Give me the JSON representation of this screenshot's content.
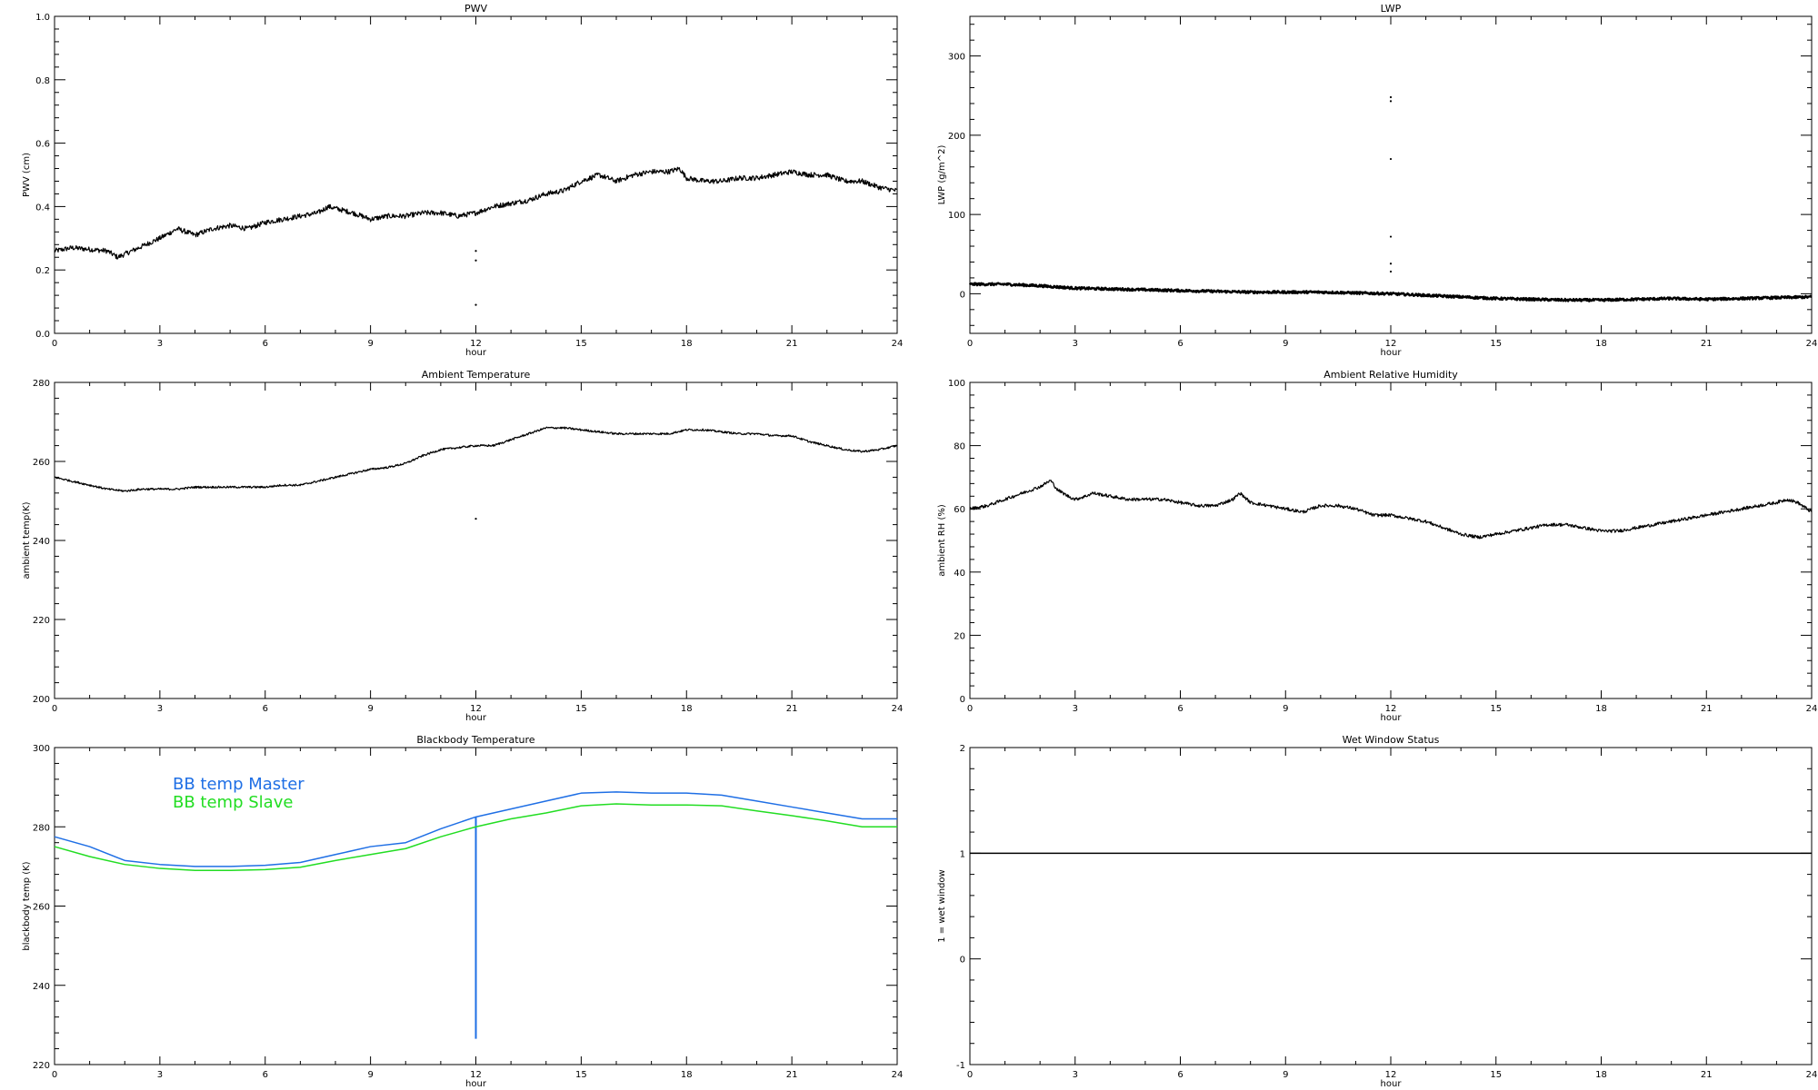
{
  "chart_data": [
    {
      "type": "line",
      "title": "PWV",
      "xlabel": "hour",
      "ylabel": "PWV (cm)",
      "xlim": [
        0,
        24
      ],
      "ylim": [
        0.0,
        1.0
      ],
      "xticks": [
        "0",
        "3",
        "6",
        "9",
        "12",
        "15",
        "18",
        "21",
        "24"
      ],
      "yticks": [
        "0.0",
        "0.2",
        "0.4",
        "0.6",
        "0.8",
        "1.0"
      ],
      "yticks_values": [
        0.0,
        0.2,
        0.4,
        0.6,
        0.8,
        1.0
      ],
      "series": [
        {
          "color": "#000000",
          "noise": 0.008,
          "x": [
            0,
            0.5,
            1,
            1.5,
            1.8,
            2.2,
            2.6,
            3,
            3.5,
            4,
            4.5,
            5,
            5.5,
            6,
            6.5,
            7,
            7.5,
            7.8,
            8.5,
            9,
            9.5,
            10,
            10.5,
            11,
            11.5,
            12,
            12.5,
            13,
            13.5,
            14,
            14.5,
            15,
            15.5,
            16,
            16.5,
            17,
            17.5,
            17.8,
            18,
            18.5,
            19,
            19.5,
            20,
            20.5,
            21,
            21.5,
            22,
            22.5,
            23,
            23.5,
            24
          ],
          "y": [
            0.26,
            0.27,
            0.265,
            0.26,
            0.24,
            0.26,
            0.28,
            0.3,
            0.33,
            0.31,
            0.33,
            0.34,
            0.33,
            0.35,
            0.36,
            0.37,
            0.38,
            0.4,
            0.38,
            0.36,
            0.37,
            0.37,
            0.38,
            0.38,
            0.37,
            0.38,
            0.4,
            0.41,
            0.42,
            0.44,
            0.45,
            0.48,
            0.5,
            0.48,
            0.5,
            0.51,
            0.51,
            0.52,
            0.49,
            0.48,
            0.48,
            0.49,
            0.49,
            0.5,
            0.51,
            0.5,
            0.5,
            0.48,
            0.48,
            0.46,
            0.45
          ]
        }
      ],
      "outliers": [
        [
          12,
          0.26
        ],
        [
          12,
          0.23
        ],
        [
          12,
          0.09
        ]
      ]
    },
    {
      "type": "line",
      "title": "LWP",
      "xlabel": "hour",
      "ylabel": "LWP (g/m^2)",
      "xlim": [
        0,
        24
      ],
      "ylim": [
        -50,
        350
      ],
      "xticks": [
        "0",
        "3",
        "6",
        "9",
        "12",
        "15",
        "18",
        "21",
        "24"
      ],
      "yticks": [
        "0",
        "100",
        "200",
        "300"
      ],
      "yticks_values": [
        0,
        100,
        200,
        300
      ],
      "series": [
        {
          "color": "#000000",
          "noise": 1.5,
          "width": 2.4,
          "x": [
            0,
            1,
            2,
            3,
            4,
            5,
            6,
            7,
            8,
            9,
            10,
            11,
            12,
            13,
            14,
            15,
            16,
            17,
            18,
            19,
            20,
            21,
            22,
            23,
            24
          ],
          "y": [
            12,
            12,
            10,
            7,
            6,
            5,
            4,
            3,
            2,
            2,
            2,
            1,
            0,
            -2,
            -4,
            -6,
            -7,
            -8,
            -8,
            -7,
            -6,
            -7,
            -6,
            -5,
            -4
          ]
        }
      ],
      "outliers": [
        [
          12,
          248
        ],
        [
          12,
          243
        ],
        [
          12,
          170
        ],
        [
          12,
          72
        ],
        [
          12,
          38
        ],
        [
          12,
          28
        ]
      ]
    },
    {
      "type": "line",
      "title": "Ambient Temperature",
      "xlabel": "hour",
      "ylabel": "ambient temp(K)",
      "xlim": [
        0,
        24
      ],
      "ylim": [
        200,
        280
      ],
      "xticks": [
        "0",
        "3",
        "6",
        "9",
        "12",
        "15",
        "18",
        "21",
        "24"
      ],
      "yticks": [
        "200",
        "220",
        "240",
        "260",
        "280"
      ],
      "yticks_values": [
        200,
        220,
        240,
        260,
        280
      ],
      "series": [
        {
          "color": "#000000",
          "noise": 0.25,
          "x": [
            0,
            0.5,
            1,
            1.5,
            2,
            2.5,
            3,
            3.5,
            4,
            5,
            6,
            6.5,
            7,
            7.5,
            8,
            8.5,
            9,
            9.5,
            10,
            10.5,
            11,
            11.5,
            12,
            12.5,
            13,
            13.5,
            14,
            14.5,
            15,
            15.5,
            16,
            16.5,
            17,
            17.5,
            18,
            18.5,
            19,
            19.5,
            20,
            20.5,
            21,
            21.5,
            22,
            22.5,
            23,
            23.5,
            24
          ],
          "y": [
            256,
            255,
            254,
            253,
            252.5,
            253,
            253,
            253,
            253.5,
            253.5,
            253.5,
            254,
            254,
            255,
            256,
            257,
            258,
            258.5,
            259.5,
            261.5,
            263,
            263.5,
            264,
            264,
            265.5,
            267,
            268.5,
            268.5,
            268,
            267.5,
            267,
            267,
            267,
            267,
            268,
            268,
            267.5,
            267,
            267,
            266.5,
            266.5,
            265,
            264,
            263,
            262.5,
            263,
            264
          ]
        }
      ],
      "outliers": [
        [
          12,
          245.5
        ]
      ]
    },
    {
      "type": "line",
      "title": "Ambient Relative Humidity",
      "xlabel": "hour",
      "ylabel": "ambient RH (%)",
      "xlim": [
        0,
        24
      ],
      "ylim": [
        0,
        100
      ],
      "xticks": [
        "0",
        "3",
        "6",
        "9",
        "12",
        "15",
        "18",
        "21",
        "24"
      ],
      "yticks": [
        "0",
        "20",
        "40",
        "60",
        "80",
        "100"
      ],
      "yticks_values": [
        0,
        20,
        40,
        60,
        80,
        100
      ],
      "series": [
        {
          "color": "#000000",
          "noise": 0.5,
          "x": [
            0,
            0.5,
            1,
            1.5,
            2,
            2.3,
            2.5,
            2.8,
            3,
            3.3,
            3.5,
            4,
            4.5,
            5,
            5.5,
            6,
            6.5,
            7,
            7.5,
            7.7,
            8,
            8.5,
            9,
            9.5,
            10,
            10.5,
            11,
            11.5,
            12,
            12.5,
            13,
            13.5,
            14,
            14.5,
            15,
            15.5,
            16,
            16.5,
            17,
            17.5,
            18,
            18.5,
            19,
            19.5,
            20,
            20.5,
            21,
            21.5,
            22,
            22.5,
            23,
            23.3,
            23.6,
            24
          ],
          "y": [
            60,
            61,
            63,
            65,
            67,
            69,
            66,
            64,
            63,
            64,
            65,
            64,
            63,
            63,
            63,
            62,
            61,
            61,
            63,
            65,
            62,
            61,
            60,
            59,
            61,
            61,
            60,
            58,
            58,
            57,
            56,
            54,
            52,
            51,
            52,
            53,
            54,
            55,
            55,
            54,
            53,
            53,
            54,
            55,
            56,
            57,
            58,
            59,
            60,
            61,
            62,
            63,
            62,
            59
          ]
        }
      ],
      "outliers": []
    },
    {
      "type": "line",
      "title": "Blackbody Temperature",
      "xlabel": "hour",
      "ylabel": "blackbody temp (K)",
      "xlim": [
        0,
        24
      ],
      "ylim": [
        220,
        300
      ],
      "xticks": [
        "0",
        "3",
        "6",
        "9",
        "12",
        "15",
        "18",
        "21",
        "24"
      ],
      "yticks": [
        "220",
        "240",
        "260",
        "280",
        "300"
      ],
      "yticks_values": [
        220,
        240,
        260,
        280,
        300
      ],
      "legend_position": "top-left",
      "series": [
        {
          "name": "BB temp Master",
          "color": "#1f6fe5",
          "noise": 0,
          "x": [
            0,
            1,
            2,
            3,
            4,
            5,
            6,
            7,
            8,
            9,
            10,
            11,
            12,
            13,
            14,
            15,
            16,
            17,
            18,
            19,
            20,
            21,
            22,
            23,
            24
          ],
          "y": [
            277.5,
            275,
            271.5,
            270.5,
            270,
            270,
            270.3,
            271,
            273,
            275,
            276,
            279.5,
            282.5,
            284.5,
            286.5,
            288.5,
            288.8,
            288.5,
            288.5,
            288,
            286.5,
            285,
            283.5,
            282,
            282
          ]
        },
        {
          "name": "BB temp Slave",
          "color": "#22dd22",
          "noise": 0,
          "x": [
            0,
            1,
            2,
            3,
            4,
            5,
            6,
            7,
            8,
            9,
            10,
            11,
            12,
            13,
            14,
            15,
            16,
            17,
            18,
            19,
            20,
            21,
            22,
            23,
            24
          ],
          "y": [
            275,
            272.5,
            270.5,
            269.5,
            269,
            269,
            269.2,
            269.8,
            271.5,
            273,
            274.5,
            277.5,
            280,
            282,
            283.5,
            285.3,
            285.8,
            285.5,
            285.5,
            285.3,
            284,
            282.8,
            281.5,
            280,
            280
          ]
        }
      ],
      "spike": {
        "x": 12,
        "y_top": 282.5,
        "y_bottom": 226.5,
        "color": "#1f6fe5"
      },
      "outliers": []
    },
    {
      "type": "line",
      "title": "Wet Window Status",
      "xlabel": "hour",
      "ylabel": "1 = wet window",
      "xlim": [
        0,
        24
      ],
      "ylim": [
        -1,
        2
      ],
      "xticks": [
        "0",
        "3",
        "6",
        "9",
        "12",
        "15",
        "18",
        "21",
        "24"
      ],
      "yticks": [
        "-1",
        "0",
        "1",
        "2"
      ],
      "yticks_values": [
        -1,
        0,
        1,
        2
      ],
      "series": [
        {
          "color": "#000000",
          "noise": 0,
          "x": [
            0,
            24
          ],
          "y": [
            1,
            1
          ]
        }
      ],
      "outliers": []
    }
  ]
}
